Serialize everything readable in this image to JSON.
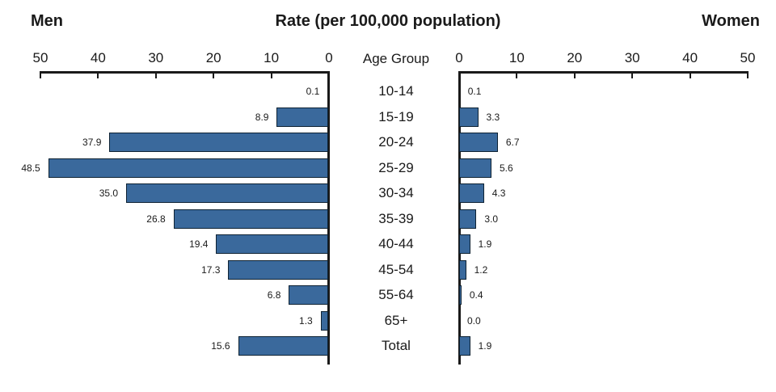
{
  "header": {
    "left_label": "Men",
    "title": "Rate (per 100,000 population)",
    "right_label": "Women"
  },
  "axis": {
    "center_label": "Age Group",
    "men_ticks": [
      "50",
      "40",
      "30",
      "20",
      "10",
      "0"
    ],
    "women_ticks": [
      "0",
      "10",
      "20",
      "30",
      "40",
      "50"
    ]
  },
  "chart_data": {
    "type": "bar",
    "variant": "bidirectional-population-pyramid",
    "title": "Rate (per 100,000 population)",
    "categories": [
      "10-14",
      "15-19",
      "20-24",
      "25-29",
      "30-34",
      "35-39",
      "40-44",
      "45-54",
      "55-64",
      "65+",
      "Total"
    ],
    "series": [
      {
        "name": "Men",
        "side": "left",
        "values": [
          0.1,
          8.9,
          37.9,
          48.5,
          35.0,
          26.8,
          19.4,
          17.3,
          6.8,
          1.3,
          15.6
        ],
        "labels": [
          "0.1",
          "8.9",
          "37.9",
          "48.5",
          "35.0",
          "26.8",
          "19.4",
          "17.3",
          "6.8",
          "1.3",
          "15.6"
        ]
      },
      {
        "name": "Women",
        "side": "right",
        "values": [
          0.1,
          3.3,
          6.7,
          5.6,
          4.3,
          3.0,
          1.9,
          1.2,
          0.4,
          0.0,
          1.9
        ],
        "labels": [
          "0.1",
          "3.3",
          "6.7",
          "5.6",
          "4.3",
          "3.0",
          "1.9",
          "1.2",
          "0.4",
          "0.0",
          "1.9"
        ]
      }
    ],
    "xlim": [
      0,
      50
    ],
    "tick_interval": 10,
    "grid": false,
    "bar_color": "#3A699C",
    "bar_border_color": "#0E2233",
    "axis_color": "#1A1A1A"
  }
}
